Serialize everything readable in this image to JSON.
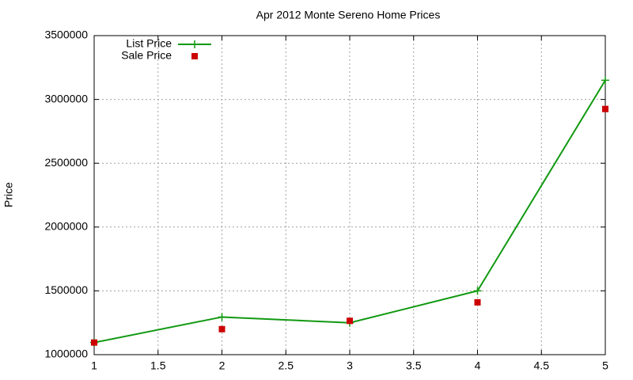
{
  "chart_data": {
    "type": "line",
    "title": "Apr 2012 Monte Sereno Home Prices",
    "y_label": "Price",
    "x": [
      1,
      2,
      3,
      4,
      5
    ],
    "series": [
      {
        "name": "List Price",
        "color": "#119911",
        "style": "linespoints",
        "values": [
          1095000,
          1295000,
          1250000,
          1500000,
          3150000
        ]
      },
      {
        "name": "Sale Price",
        "color": "#cc0000",
        "style": "points",
        "values": [
          1095000,
          1200000,
          1265000,
          1410000,
          2925000
        ]
      }
    ],
    "xlim": [
      1,
      5
    ],
    "xticks": [
      1,
      1.5,
      2,
      2.5,
      3,
      3.5,
      4,
      4.5,
      5
    ],
    "ylim": [
      1000000,
      3500000
    ],
    "yticks": [
      1000000,
      1500000,
      2000000,
      2500000,
      3000000,
      3500000
    ],
    "grid": true,
    "legend": "top-left"
  }
}
